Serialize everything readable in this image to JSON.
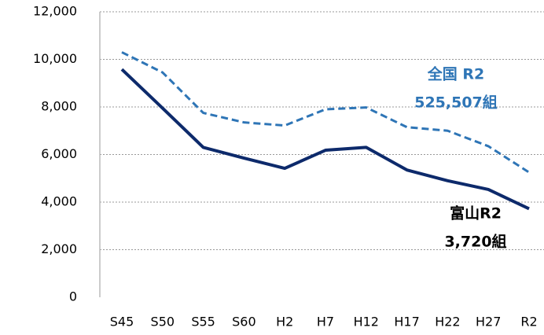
{
  "chart_data": {
    "type": "line",
    "categories": [
      "S45",
      "S50",
      "S55",
      "S60",
      "H2",
      "H7",
      "H12",
      "H17",
      "H22",
      "H27",
      "R2"
    ],
    "series": [
      {
        "color": "#2e75b6",
        "dash": true,
        "values": [
          10300,
          9450,
          7750,
          7350,
          7220,
          7900,
          7980,
          7150,
          7000,
          6350,
          5250
        ]
      },
      {
        "color": "#0d2a6b",
        "dash": false,
        "values": [
          9580,
          7950,
          6300,
          5850,
          5420,
          6180,
          6300,
          5350,
          4900,
          4530,
          3720
        ]
      }
    ],
    "annotations": [
      {
        "lines": [
          "全国 R2",
          "525,507組"
        ],
        "color": "#2e75b6"
      },
      {
        "lines": [
          "富山R2",
          "3,720組"
        ],
        "color": "#000000"
      }
    ],
    "ylim": [
      0,
      12000
    ],
    "yticks": [
      0,
      {
        "value": 2000,
        "label": "2,000"
      },
      {
        "value": 4000,
        "label": "4,000"
      },
      {
        "value": 6000,
        "label": "6,000"
      },
      {
        "value": 8000,
        "label": "8,000"
      },
      {
        "value": 10000,
        "label": "10,000"
      },
      {
        "value": 12000,
        "label": "12,000"
      }
    ],
    "grid": true
  }
}
